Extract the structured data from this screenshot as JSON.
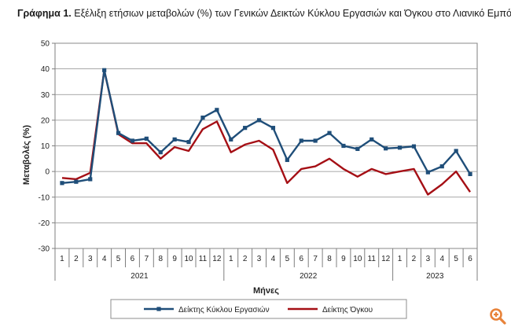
{
  "title": {
    "lead": "Γράφημα 1.",
    "text": "Εξέλιξη ετήσιων μεταβολών (%) των Γενικών Δεικτών Κύκλου Εργασιών και Όγκου στο Λιανικό Εμπόριο"
  },
  "zoom_icon": "zoom-in-icon",
  "chart_data": {
    "type": "line",
    "ylabel": "Μεταβολές (%)",
    "xlabel": "Μήνες",
    "ylim": [
      -30,
      50
    ],
    "yticks": [
      -30,
      -20,
      -10,
      0,
      10,
      20,
      30,
      40,
      50
    ],
    "grid": true,
    "legend": "bottom",
    "categories": [
      "1",
      "2",
      "3",
      "4",
      "5",
      "6",
      "7",
      "8",
      "9",
      "10",
      "11",
      "12",
      "1",
      "2",
      "3",
      "4",
      "5",
      "6",
      "7",
      "8",
      "9",
      "10",
      "11",
      "12",
      "1",
      "2",
      "3",
      "4",
      "5",
      "6"
    ],
    "years": [
      {
        "label": "2021",
        "count": 12
      },
      {
        "label": "2022",
        "count": 12
      },
      {
        "label": "2023",
        "count": 6
      }
    ],
    "series": [
      {
        "name": "Δείκτης Κύκλου Εργασιών",
        "color": "#1f4e79",
        "marker": "square",
        "values": [
          -4.5,
          -4,
          -3,
          39.5,
          15,
          12,
          12.8,
          7.5,
          12.5,
          11.5,
          21,
          24,
          12.5,
          17,
          20,
          17,
          4.5,
          12,
          12,
          15,
          10,
          8.8,
          12.5,
          9,
          9.3,
          9.8,
          -0.3,
          2,
          8,
          -1
        ]
      },
      {
        "name": "Δείκτης Όγκου",
        "color": "#a50f15",
        "marker": "none",
        "values": [
          -2.5,
          -3,
          -0.5,
          39.5,
          14.5,
          11,
          11,
          5,
          9.5,
          8,
          16.5,
          19.5,
          7.5,
          10.5,
          12,
          8.5,
          -4.5,
          1,
          2,
          5,
          1,
          -2,
          1,
          -1,
          0,
          1,
          -9,
          -5,
          0,
          -8
        ]
      }
    ]
  }
}
